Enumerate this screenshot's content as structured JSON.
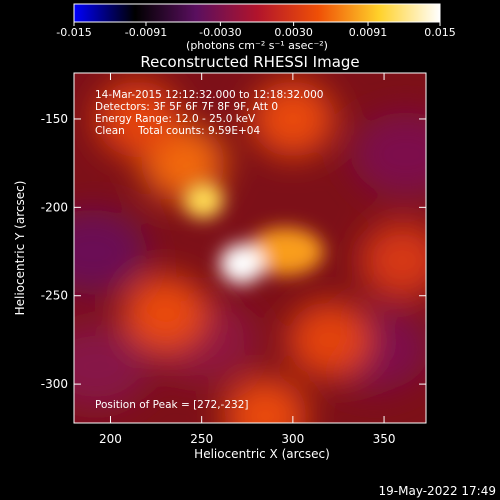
{
  "colorbar": {
    "min": -0.015,
    "max": 0.015,
    "ticks": [
      "-0.015",
      "-0.0091",
      "-0.0030",
      "0.0030",
      "0.0091",
      "0.015"
    ],
    "tick_values": [
      -0.015,
      -0.0091,
      -0.003,
      0.003,
      0.0091,
      0.015
    ],
    "unit_label": "(photons cm⁻² s⁻¹ asec⁻²)",
    "colormap": [
      "#0000ff",
      "#000000",
      "#5a0f5f",
      "#b1142c",
      "#ef4f06",
      "#ffd12a",
      "#ffffff"
    ]
  },
  "chart_data": {
    "type": "heatmap",
    "title": "Reconstructed RHESSI Image",
    "xlabel": "Heliocentric X (arcsec)",
    "ylabel": "Heliocentric Y (arcsec)",
    "xlim": [
      180,
      373
    ],
    "ylim": [
      -322,
      -124
    ],
    "xticks": [
      200,
      250,
      300,
      350
    ],
    "yticks": [
      -150,
      -200,
      -250,
      -300
    ],
    "value_range": [
      -0.015,
      0.015
    ],
    "features": [
      {
        "kind": "peak",
        "x": 272,
        "y": -232,
        "value": 0.015
      },
      {
        "kind": "source",
        "x": 251,
        "y": -196,
        "value": 0.011
      },
      {
        "kind": "ridge",
        "x": 296,
        "y": -225,
        "value": 0.008
      },
      {
        "kind": "halo",
        "x": 240,
        "y": -175,
        "value": 0.006
      },
      {
        "kind": "halo",
        "x": 300,
        "y": -150,
        "value": 0.0045
      },
      {
        "kind": "halo",
        "x": 215,
        "y": -150,
        "value": 0.004
      },
      {
        "kind": "halo",
        "x": 230,
        "y": -260,
        "value": 0.0045
      },
      {
        "kind": "halo",
        "x": 320,
        "y": -275,
        "value": 0.004
      },
      {
        "kind": "halo",
        "x": 285,
        "y": -318,
        "value": 0.0045
      },
      {
        "kind": "halo",
        "x": 360,
        "y": -230,
        "value": 0.003
      },
      {
        "kind": "negative",
        "x": 190,
        "y": -225,
        "value": -0.004
      },
      {
        "kind": "negative",
        "x": 192,
        "y": -290,
        "value": -0.0025
      },
      {
        "kind": "negative",
        "x": 362,
        "y": -170,
        "value": -0.003
      },
      {
        "kind": "negative",
        "x": 345,
        "y": -280,
        "value": -0.003
      },
      {
        "kind": "negative",
        "x": 250,
        "y": -275,
        "value": -0.002
      }
    ],
    "annotations": [
      "14-Mar-2015 12:12:32.000 to 12:18:32.000",
      "Detectors: 3F 5F 6F 7F 8F 9F, Att 0",
      "Energy Range: 12.0 - 25.0 keV",
      "Clean    Total counts: 9.59E+04"
    ],
    "peak_label": "Position of Peak = [272,-232]"
  },
  "footer": {
    "timestamp": "19-May-2022 17:49"
  }
}
